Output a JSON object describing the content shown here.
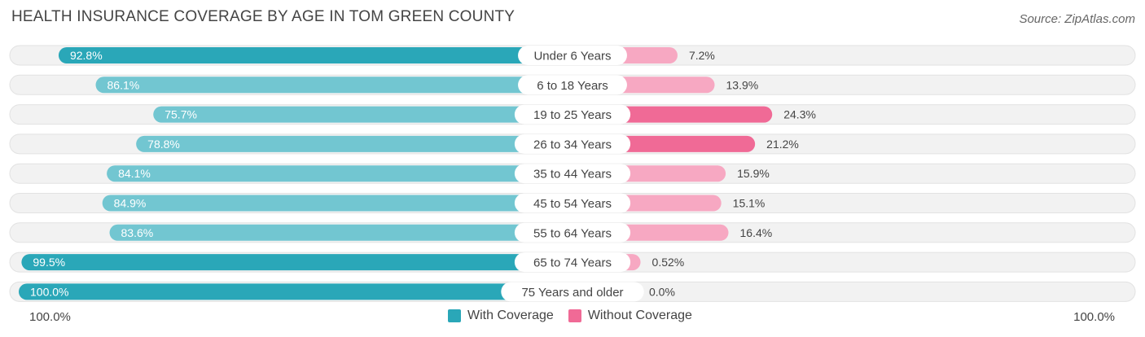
{
  "title": "HEALTH INSURANCE COVERAGE BY AGE IN TOM GREEN COUNTY",
  "source": "Source: ZipAtlas.com",
  "colors": {
    "with_coverage": "#2aa7b8",
    "with_coverage_light": "#72c6d1",
    "without_coverage": "#f06a96",
    "without_coverage_light": "#f7a8c2",
    "track": "#efefef"
  },
  "axis": {
    "left_label": "100.0%",
    "right_label": "100.0%"
  },
  "legend": {
    "with_label": "With Coverage",
    "without_label": "Without Coverage"
  },
  "chart_data": {
    "type": "bar",
    "title": "HEALTH INSURANCE COVERAGE BY AGE IN TOM GREEN COUNTY",
    "categories": [
      "Under 6 Years",
      "6 to 18 Years",
      "19 to 25 Years",
      "26 to 34 Years",
      "35 to 44 Years",
      "45 to 54 Years",
      "55 to 64 Years",
      "65 to 74 Years",
      "75 Years and older"
    ],
    "series": [
      {
        "name": "With Coverage",
        "values": [
          92.8,
          86.1,
          75.7,
          78.8,
          84.1,
          84.9,
          83.6,
          99.5,
          100.0
        ],
        "labels": [
          "92.8%",
          "86.1%",
          "75.7%",
          "78.8%",
          "84.1%",
          "84.9%",
          "83.6%",
          "99.5%",
          "100.0%"
        ]
      },
      {
        "name": "Without Coverage",
        "values": [
          7.2,
          13.9,
          24.3,
          21.2,
          15.9,
          15.1,
          16.4,
          0.52,
          0.0
        ],
        "labels": [
          "7.2%",
          "13.9%",
          "24.3%",
          "21.2%",
          "15.9%",
          "15.1%",
          "16.4%",
          "0.52%",
          "0.0%"
        ]
      }
    ],
    "xlim": [
      0,
      100
    ],
    "legend_position": "bottom-center"
  }
}
